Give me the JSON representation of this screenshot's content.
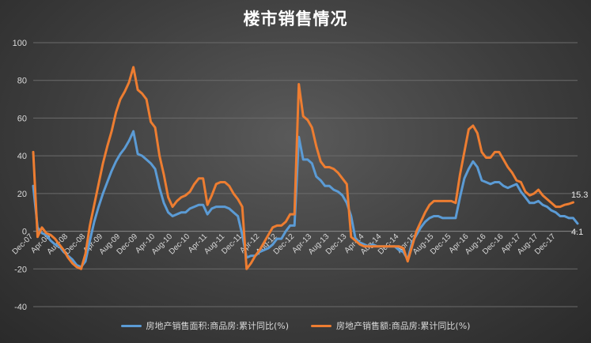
{
  "chart_data": {
    "type": "line",
    "title": "楼市销售情况",
    "ylim": [
      -40,
      100
    ],
    "yticks": [
      -40,
      -20,
      0,
      20,
      40,
      60,
      80,
      100
    ],
    "grid": true,
    "legend_position": "bottom",
    "x_labels": [
      "Dec-07",
      "Apr-08",
      "Aug-08",
      "Dec-08",
      "Apr-09",
      "Aug-09",
      "Dec-09",
      "Apr-10",
      "Aug-10",
      "Dec-10",
      "Apr-11",
      "Aug-11",
      "Dec-11",
      "Apr-12",
      "Aug-12",
      "Dec-12",
      "Apr-13",
      "Aug-13",
      "Dec-13",
      "Apr-14",
      "Aug-14",
      "Dec-14",
      "Apr-15",
      "Aug-15",
      "Dec-15",
      "Apr-16",
      "Aug-16",
      "Dec-16",
      "Apr-17",
      "Aug-17",
      "Dec-17"
    ],
    "series": [
      {
        "name": "房地产销售面积:商品房:累计同比(%)",
        "color": "#5b9bd5",
        "end_label": "4.1",
        "values": [
          24,
          2,
          -1,
          -2,
          -5,
          -7,
          -8,
          -11,
          -13,
          -15,
          -18,
          -19,
          -16,
          -5,
          5,
          13,
          20,
          26,
          32,
          37,
          41,
          44,
          48,
          53,
          41,
          40,
          38,
          36,
          33,
          23,
          15,
          10,
          8,
          9,
          10,
          10,
          12,
          13,
          14,
          14,
          9,
          12,
          13,
          13,
          13,
          12,
          10,
          8,
          -2,
          -14,
          -13,
          -13,
          -11,
          -10,
          -9,
          -7,
          -4,
          -4,
          0,
          3,
          3,
          50,
          38,
          38,
          36,
          29,
          27,
          24,
          24,
          22,
          21,
          19,
          15,
          8,
          -4,
          -6,
          -7,
          -8,
          -7,
          -8,
          -8,
          -8,
          -8,
          -8,
          -10,
          -11,
          -15,
          -6,
          -2,
          2,
          5,
          7,
          8,
          8,
          7,
          7,
          7,
          7,
          18,
          28,
          33,
          37,
          34,
          27,
          26,
          25,
          26,
          26,
          24,
          23,
          24,
          25,
          21,
          18,
          15,
          15,
          16,
          14,
          13,
          11,
          10,
          8,
          8,
          7,
          7,
          4.1
        ]
      },
      {
        "name": "房地产销售额:商品房:累计同比(%)",
        "color": "#ed7d31",
        "end_label": "15.3",
        "values": [
          42,
          -3,
          2,
          -1,
          -2,
          -4,
          -7,
          -10,
          -14,
          -17,
          -19,
          -20,
          -12,
          3,
          14,
          25,
          36,
          45,
          53,
          63,
          70,
          74,
          79,
          87,
          75,
          73,
          70,
          58,
          55,
          40,
          30,
          18,
          13,
          16,
          18,
          19,
          21,
          25,
          28,
          28,
          14,
          19,
          25,
          26,
          26,
          24,
          20,
          17,
          13,
          -20,
          -17,
          -13,
          -10,
          -6,
          -2,
          2,
          3,
          3,
          5,
          9,
          9,
          78,
          61,
          59,
          55,
          45,
          37,
          34,
          34,
          33,
          31,
          28,
          25,
          -3,
          -5,
          -7,
          -8,
          -8,
          -8,
          -8,
          -8,
          -8,
          -8,
          -8,
          -8,
          -9,
          -16,
          -8,
          0,
          5,
          10,
          14,
          16,
          16,
          16,
          16,
          16,
          15,
          30,
          42,
          54,
          56,
          52,
          42,
          39,
          39,
          42,
          42,
          38,
          34,
          31,
          27,
          26,
          21,
          19,
          20,
          22,
          19,
          17,
          15,
          13,
          13,
          14,
          14.5,
          15.3
        ]
      }
    ]
  }
}
